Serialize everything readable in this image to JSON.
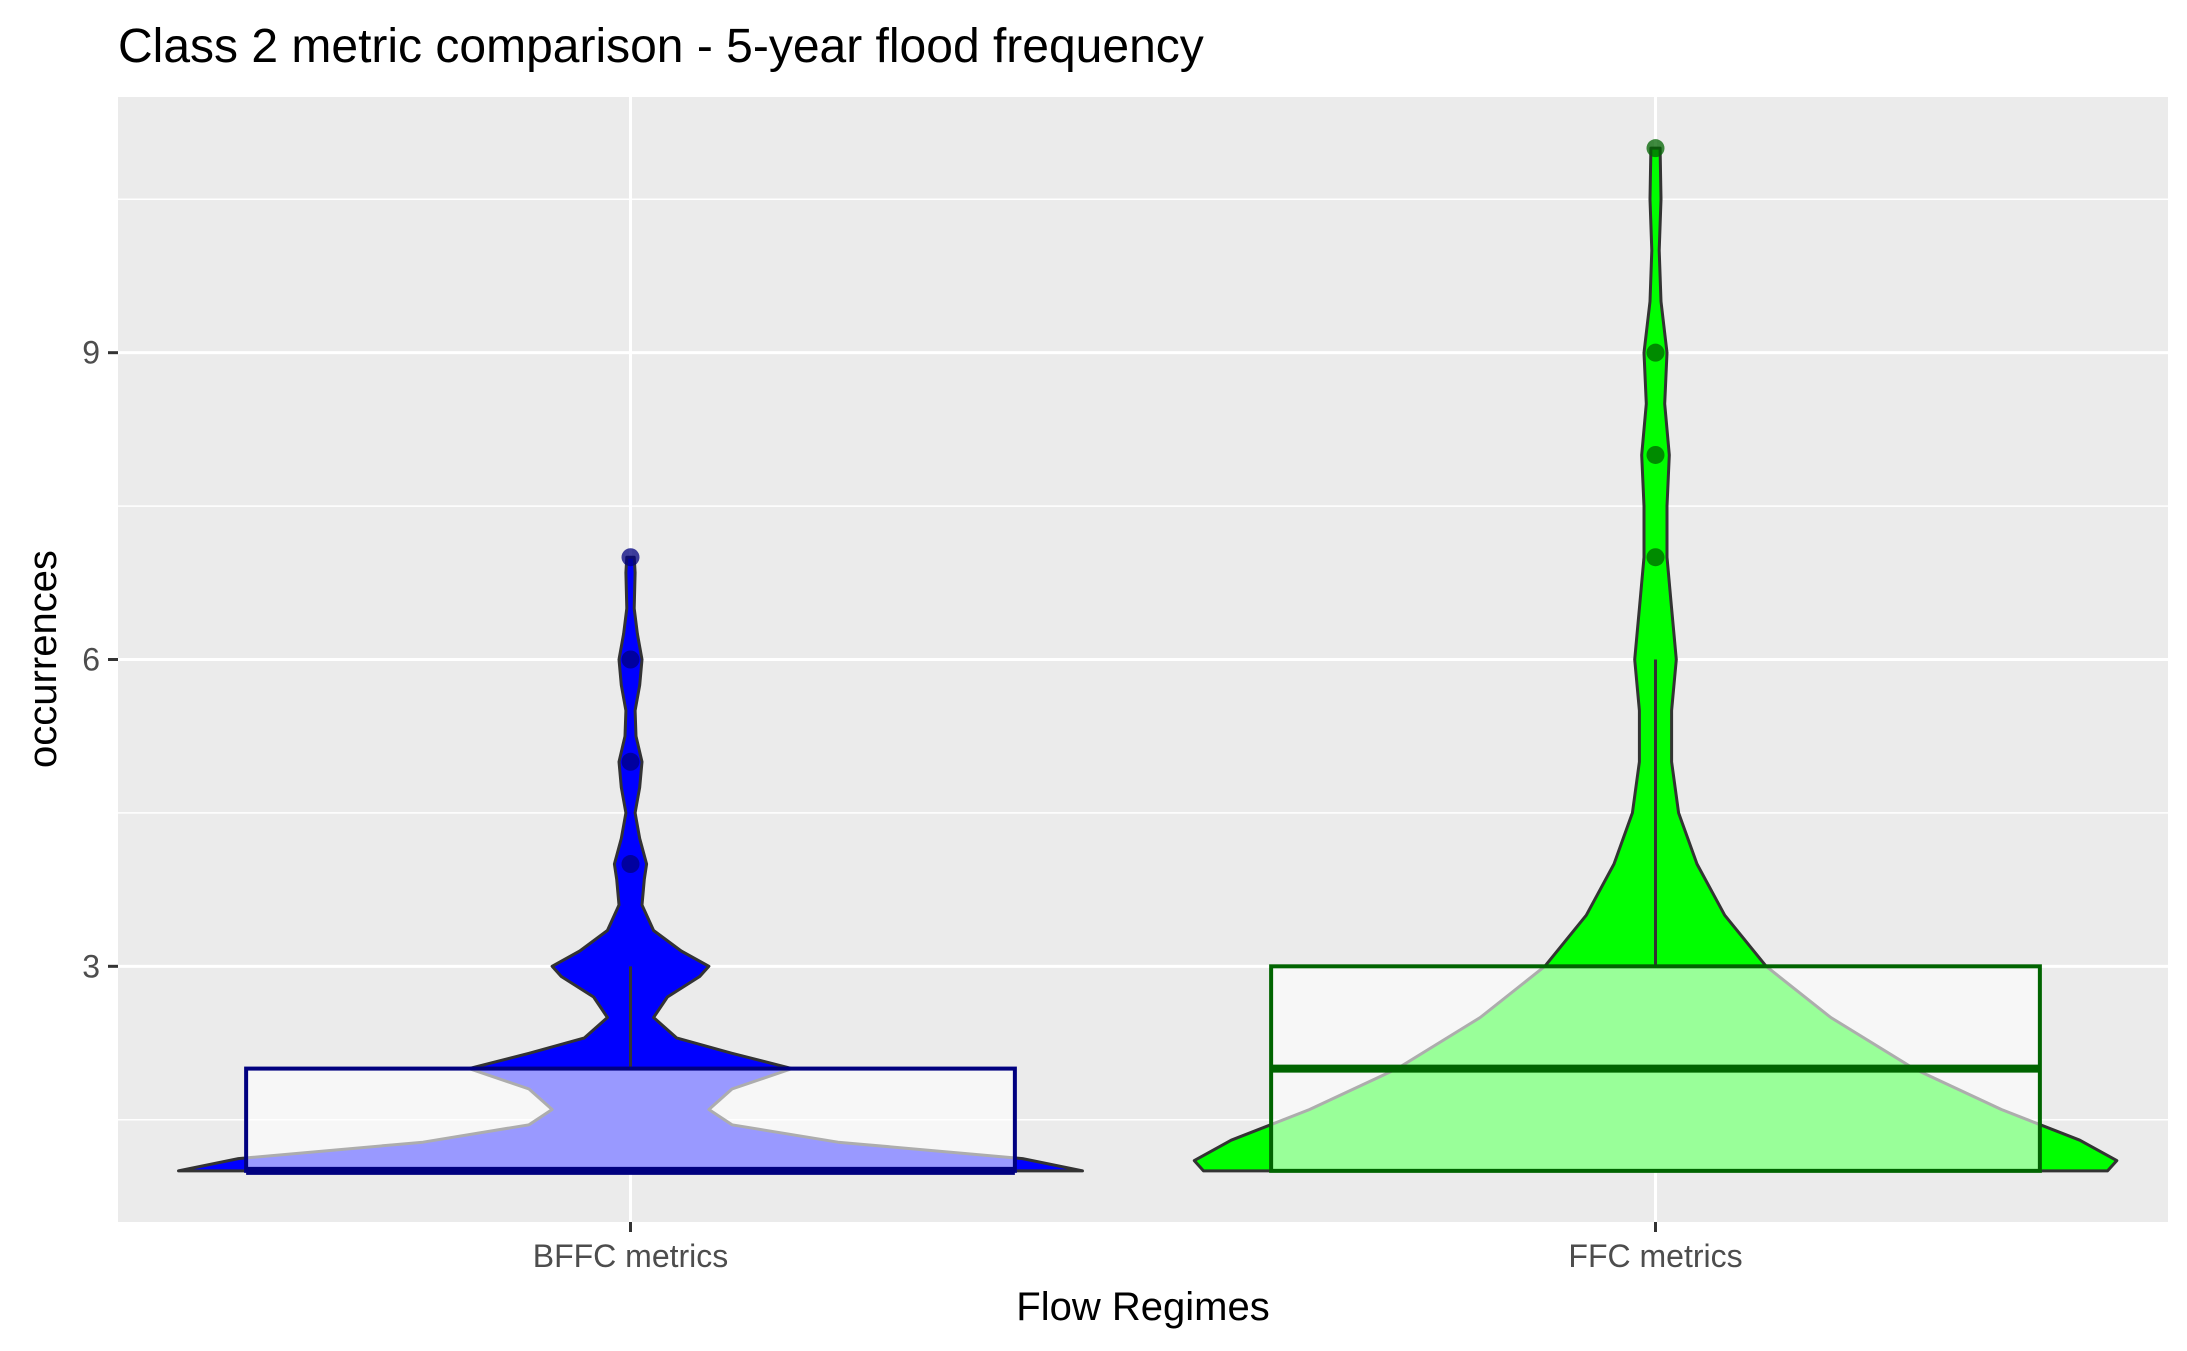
{
  "chart_data": {
    "type": "violin",
    "title": "Class 2 metric comparison - 5-year flood frequency",
    "xlabel": "Flow Regimes",
    "ylabel": "occurrences",
    "categories": [
      "BFFC metrics",
      "FFC metrics"
    ],
    "y_ticks": [
      3,
      6,
      9
    ],
    "ylim": [
      0.5,
      11.5
    ],
    "grid": true,
    "legend": "none",
    "series": [
      {
        "category": "BFFC metrics",
        "fill": "#0000ff",
        "box_color": "#00007f",
        "box": {
          "q1": 1,
          "median": 1,
          "q3": 2,
          "whisker_low": 1,
          "whisker_high": 3
        },
        "outliers": [
          4,
          5,
          6,
          7
        ],
        "density": [
          [
            1,
            0.98
          ],
          [
            1.12,
            0.85
          ],
          [
            1.28,
            0.45
          ],
          [
            1.45,
            0.22
          ],
          [
            1.6,
            0.17
          ],
          [
            1.8,
            0.22
          ],
          [
            2.0,
            0.35
          ],
          [
            2.15,
            0.22
          ],
          [
            2.3,
            0.1
          ],
          [
            2.5,
            0.05
          ],
          [
            2.7,
            0.08
          ],
          [
            2.9,
            0.15
          ],
          [
            3.0,
            0.17
          ],
          [
            3.15,
            0.11
          ],
          [
            3.35,
            0.05
          ],
          [
            3.6,
            0.025
          ],
          [
            3.85,
            0.03
          ],
          [
            4.0,
            0.035
          ],
          [
            4.25,
            0.02
          ],
          [
            4.5,
            0.01
          ],
          [
            4.75,
            0.02
          ],
          [
            5.0,
            0.025
          ],
          [
            5.25,
            0.012
          ],
          [
            5.5,
            0.01
          ],
          [
            5.75,
            0.02
          ],
          [
            6.0,
            0.025
          ],
          [
            6.25,
            0.015
          ],
          [
            6.5,
            0.008
          ],
          [
            6.85,
            0.01
          ],
          [
            7.0,
            0.008
          ]
        ]
      },
      {
        "category": "FFC metrics",
        "fill": "#00ff00",
        "box_color": "#006400",
        "box": {
          "q1": 1,
          "median": 2,
          "q3": 3,
          "whisker_low": 1,
          "whisker_high": 6
        },
        "outliers": [
          7,
          8,
          9,
          11
        ],
        "density": [
          [
            1,
            0.98
          ],
          [
            1.1,
            1.0
          ],
          [
            1.3,
            0.92
          ],
          [
            1.6,
            0.75
          ],
          [
            2.0,
            0.56
          ],
          [
            2.5,
            0.38
          ],
          [
            3.0,
            0.24
          ],
          [
            3.5,
            0.15
          ],
          [
            4.0,
            0.09
          ],
          [
            4.5,
            0.05
          ],
          [
            5.0,
            0.035
          ],
          [
            5.5,
            0.035
          ],
          [
            6.0,
            0.045
          ],
          [
            6.5,
            0.035
          ],
          [
            7.0,
            0.025
          ],
          [
            7.5,
            0.025
          ],
          [
            8.0,
            0.03
          ],
          [
            8.5,
            0.02
          ],
          [
            9.0,
            0.025
          ],
          [
            9.5,
            0.012
          ],
          [
            10.0,
            0.008
          ],
          [
            10.5,
            0.012
          ],
          [
            11.0,
            0.01
          ]
        ]
      }
    ]
  }
}
